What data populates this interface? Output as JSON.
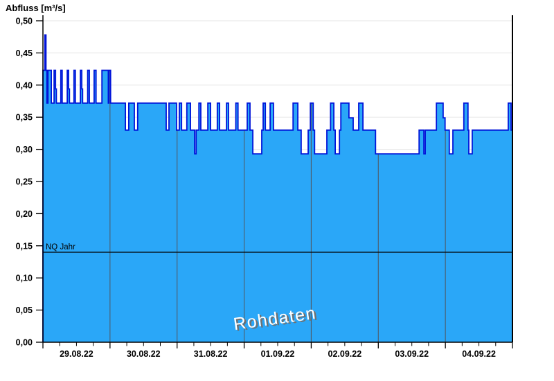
{
  "title": "Abfluss [m³/s]",
  "watermark": "Rohdaten",
  "chart_data": {
    "type": "area",
    "title": "Abfluss [m³/s]",
    "xlabel": "",
    "ylabel": "Abfluss [m³/s]",
    "ylim": [
      0.0,
      0.5
    ],
    "y_tick_step": 0.05,
    "y_tick_labels": [
      "0,00",
      "0,05",
      "0,10",
      "0,15",
      "0,20",
      "0,25",
      "0,30",
      "0,35",
      "0,40",
      "0,45",
      "0,50"
    ],
    "x_day_labels": [
      "29.08.22",
      "30.08.22",
      "31.08.22",
      "01.09.22",
      "02.09.22",
      "03.09.22",
      "04.09.22"
    ],
    "x_total_hours": 168,
    "grid": {
      "horizontal": true,
      "vertical_day_lines": true
    },
    "threshold": {
      "label": "NQ Jahr",
      "value": 0.14
    },
    "series": [
      {
        "name": "Abfluss Rohdaten",
        "unit": "m³/s",
        "fill_color": "#2aa7f8",
        "line_color": "#0013d9",
        "steps": [
          [
            0.0,
            0.423
          ],
          [
            0.7,
            0.478
          ],
          [
            1.1,
            0.423
          ],
          [
            1.4,
            0.372
          ],
          [
            1.8,
            0.423
          ],
          [
            3.0,
            0.372
          ],
          [
            4.0,
            0.423
          ],
          [
            4.5,
            0.394
          ],
          [
            4.8,
            0.372
          ],
          [
            6.4,
            0.423
          ],
          [
            6.9,
            0.372
          ],
          [
            8.7,
            0.423
          ],
          [
            9.2,
            0.394
          ],
          [
            9.5,
            0.372
          ],
          [
            11.1,
            0.423
          ],
          [
            11.6,
            0.372
          ],
          [
            13.4,
            0.423
          ],
          [
            13.9,
            0.394
          ],
          [
            14.2,
            0.372
          ],
          [
            16.0,
            0.423
          ],
          [
            16.6,
            0.372
          ],
          [
            18.3,
            0.423
          ],
          [
            19.0,
            0.372
          ],
          [
            21.1,
            0.423
          ],
          [
            23.4,
            0.372
          ],
          [
            23.6,
            0.423
          ],
          [
            24.2,
            0.372
          ],
          [
            29.5,
            0.33
          ],
          [
            30.7,
            0.372
          ],
          [
            32.7,
            0.33
          ],
          [
            33.9,
            0.372
          ],
          [
            44.1,
            0.33
          ],
          [
            45.1,
            0.372
          ],
          [
            47.8,
            0.33
          ],
          [
            48.8,
            0.372
          ],
          [
            49.6,
            0.33
          ],
          [
            51.5,
            0.372
          ],
          [
            52.8,
            0.33
          ],
          [
            54.3,
            0.293
          ],
          [
            54.8,
            0.33
          ],
          [
            55.8,
            0.372
          ],
          [
            56.5,
            0.33
          ],
          [
            59.0,
            0.372
          ],
          [
            60.0,
            0.33
          ],
          [
            62.4,
            0.372
          ],
          [
            63.2,
            0.33
          ],
          [
            65.7,
            0.372
          ],
          [
            66.4,
            0.33
          ],
          [
            69.0,
            0.372
          ],
          [
            69.8,
            0.33
          ],
          [
            73.1,
            0.372
          ],
          [
            74.1,
            0.33
          ],
          [
            75.1,
            0.293
          ],
          [
            78.3,
            0.33
          ],
          [
            78.8,
            0.372
          ],
          [
            79.6,
            0.33
          ],
          [
            81.3,
            0.372
          ],
          [
            82.5,
            0.33
          ],
          [
            89.5,
            0.372
          ],
          [
            91.2,
            0.33
          ],
          [
            92.4,
            0.293
          ],
          [
            94.9,
            0.33
          ],
          [
            95.7,
            0.372
          ],
          [
            96.7,
            0.33
          ],
          [
            97.2,
            0.293
          ],
          [
            101.6,
            0.33
          ],
          [
            102.9,
            0.372
          ],
          [
            104.1,
            0.33
          ],
          [
            104.6,
            0.293
          ],
          [
            106.1,
            0.33
          ],
          [
            106.6,
            0.372
          ],
          [
            109.5,
            0.349
          ],
          [
            111.0,
            0.33
          ],
          [
            113.0,
            0.372
          ],
          [
            114.5,
            0.33
          ],
          [
            119.0,
            0.293
          ],
          [
            134.6,
            0.33
          ],
          [
            136.3,
            0.293
          ],
          [
            136.8,
            0.33
          ],
          [
            140.8,
            0.372
          ],
          [
            143.2,
            0.349
          ],
          [
            143.9,
            0.33
          ],
          [
            145.4,
            0.293
          ],
          [
            146.7,
            0.33
          ],
          [
            150.6,
            0.372
          ],
          [
            152.1,
            0.33
          ],
          [
            152.4,
            0.293
          ],
          [
            153.6,
            0.33
          ],
          [
            166.5,
            0.372
          ],
          [
            167.5,
            0.33
          ],
          [
            168.0,
            0.33
          ]
        ]
      }
    ],
    "colors": {
      "axis": "#000000",
      "h_gridline": "#eaeaea",
      "v_day_line": "#4e5b68",
      "threshold_line": "#000000",
      "watermark_fill": "#ffffff",
      "watermark_shadow": "#707070"
    }
  }
}
